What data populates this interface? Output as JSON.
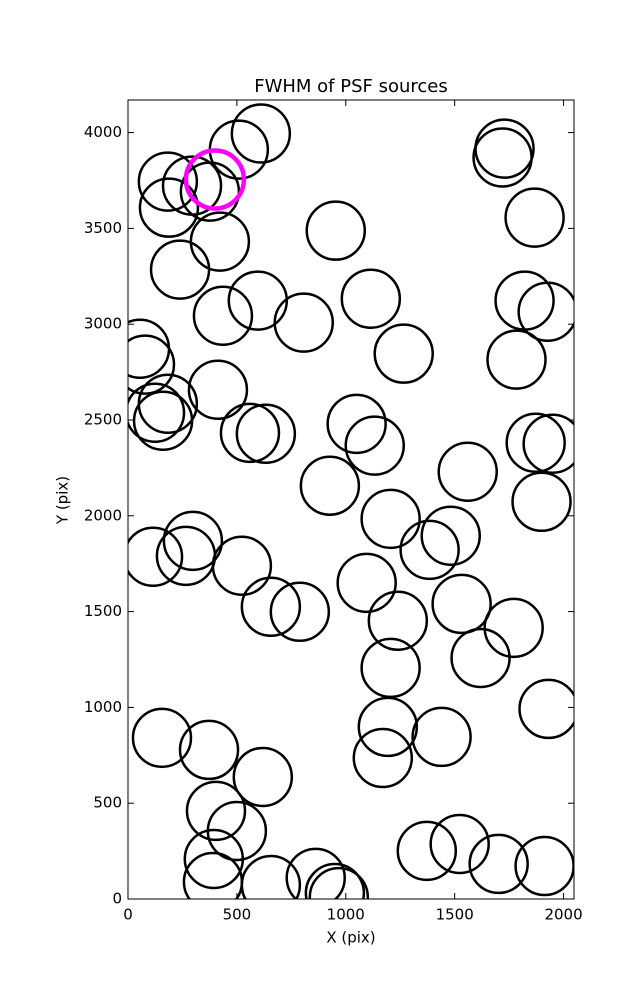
{
  "chart_data": {
    "type": "scatter",
    "title": "FWHM of PSF sources",
    "xlabel": "X (pix)",
    "ylabel": "Y (pix)",
    "xlim": [
      0,
      2048
    ],
    "ylim": [
      0,
      4170
    ],
    "xticks": [
      0,
      500,
      1000,
      1500,
      2000
    ],
    "yticks": [
      0,
      500,
      1000,
      1500,
      2000,
      2500,
      3000,
      3500,
      4000
    ],
    "series": [
      {
        "color": "#000000",
        "x": [
          610,
          509,
          1729,
          1720,
          183,
          294,
          376,
          188,
          1867,
          954,
          422,
          239,
          596,
          436,
          807,
          1115,
          1821,
          1927,
          55,
          78,
          1266,
          1784,
          413,
          183,
          124,
          161,
          1050,
          560,
          633,
          1133,
          1872,
          1950,
          1560,
          927,
          1899,
          1206,
          1482,
          1385,
          298,
          266,
          115,
          523,
          1096,
          1532,
          656,
          789,
          1239,
          1771,
          1619,
          1206,
          1931,
          1193,
          156,
          1440,
          1170,
          372,
          619,
          404,
          500,
          1372,
          1523,
          394,
          1702,
          1913,
          390,
          862,
          656,
          950,
          968
        ],
        "y": [
          3995,
          3911,
          3916,
          3870,
          3744,
          3723,
          3692,
          3608,
          3556,
          3488,
          3431,
          3285,
          3123,
          3044,
          3008,
          3133,
          3123,
          3065,
          2872,
          2789,
          2846,
          2815,
          2658,
          2585,
          2538,
          2496,
          2480,
          2433,
          2428,
          2366,
          2381,
          2376,
          2230,
          2157,
          2073,
          1984,
          1896,
          1822,
          1869,
          1791,
          1786,
          1739,
          1650,
          1540,
          1525,
          1499,
          1452,
          1415,
          1258,
          1206,
          992,
          898,
          841,
          846,
          736,
          778,
          637,
          460,
          355,
          251,
          287,
          209,
          183,
          172,
          89,
          110,
          73,
          31,
          10
        ]
      },
      {
        "color": "#ff00ff",
        "x": [
          399
        ],
        "y": [
          3755
        ]
      }
    ]
  }
}
